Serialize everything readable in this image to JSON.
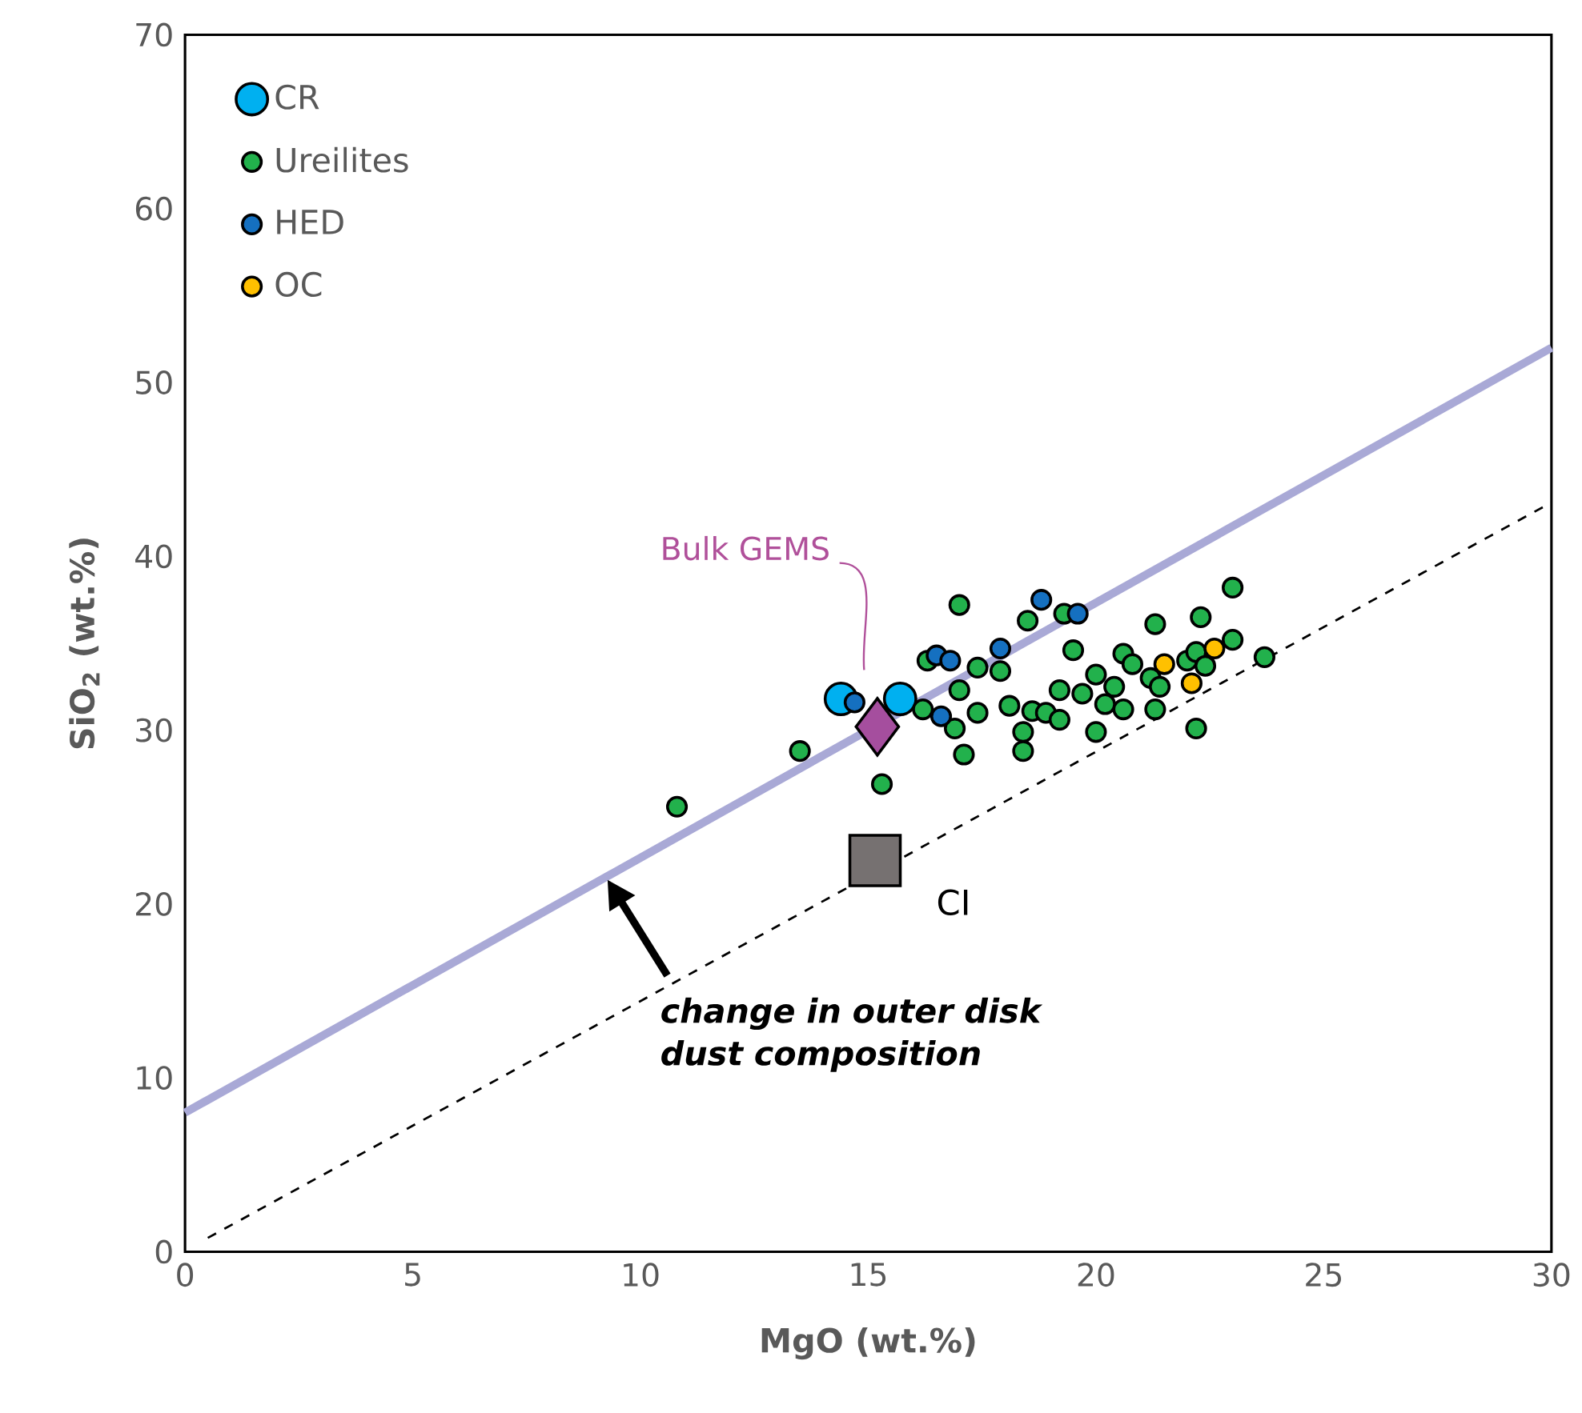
{
  "chart_data": {
    "type": "scatter",
    "xlabel": "MgO (wt.%)",
    "ylabel": "SiO$_{2}$ (wt.%)",
    "xlim": [
      0,
      30
    ],
    "ylim": [
      0,
      70
    ],
    "xticks": [
      0,
      5,
      10,
      15,
      20,
      25,
      30
    ],
    "yticks": [
      0,
      10,
      20,
      30,
      40,
      50,
      60,
      70
    ],
    "grid": false,
    "legend": "top left",
    "marker": "circle",
    "series": [
      {
        "name": "CR",
        "color": "#00b0f0",
        "x": [
          14.4,
          15.7
        ],
        "values": [
          31.8,
          31.8
        ]
      },
      {
        "name": "Ureilites",
        "color": "#22b14c",
        "x": [
          10.8,
          13.5,
          15.3,
          16.2,
          17.0,
          16.3,
          17.4,
          17.0,
          17.4,
          16.9,
          17.1,
          18.5,
          19.3,
          19.5,
          17.9,
          18.1,
          18.6,
          18.9,
          19.2,
          19.2,
          18.4,
          18.4,
          19.7,
          20.0,
          20.2,
          20.4,
          20.6,
          20.8,
          20.6,
          20.0,
          21.2,
          21.4,
          21.3,
          21.3,
          22.0,
          22.2,
          22.4,
          22.3,
          23.0,
          23.0,
          23.7,
          22.2
        ],
        "values": [
          25.6,
          28.8,
          26.9,
          31.2,
          37.2,
          34.0,
          33.6,
          32.3,
          31.0,
          30.1,
          28.6,
          36.3,
          36.7,
          34.6,
          33.4,
          31.4,
          31.1,
          31.0,
          32.3,
          30.6,
          29.9,
          28.8,
          32.1,
          33.2,
          31.5,
          32.5,
          34.4,
          33.8,
          31.2,
          29.9,
          33.0,
          32.5,
          36.1,
          31.2,
          34.0,
          34.5,
          33.7,
          36.5,
          35.2,
          38.2,
          34.2,
          30.1
        ]
      },
      {
        "name": "HED",
        "color": "#1570c0",
        "x": [
          14.7,
          16.5,
          16.8,
          16.6,
          17.9,
          18.8,
          19.6
        ],
        "values": [
          31.6,
          34.3,
          34.0,
          30.8,
          34.7,
          37.5,
          36.7
        ]
      },
      {
        "name": "OC",
        "color": "#ffc000",
        "x": [
          21.5,
          22.1,
          22.6
        ],
        "values": [
          33.8,
          32.7,
          34.7
        ]
      },
      {
        "color": "#a54e9e",
        "marker": "diamond",
        "x": [
          15.2
        ],
        "values": [
          30.2
        ]
      },
      {
        "color": "#767171",
        "marker": "square",
        "x": [
          15.15
        ],
        "values": [
          22.5
        ]
      },
      {
        "type": "line",
        "marker": "none",
        "color": "#a9a9d6",
        "x": [
          0,
          30
        ],
        "values": [
          8,
          52
        ]
      },
      {
        "type": "line",
        "marker": "none",
        "color": "#000000",
        "line_style": "dashed",
        "x": [
          0.5,
          30
        ],
        "values": [
          0.8,
          43.1
        ]
      }
    ],
    "annotations": [
      "Bulk GEMS",
      {
        "text": "CI",
        "x": 15.15,
        "y": 22.5
      },
      "change in outer disk dust composition"
    ]
  }
}
